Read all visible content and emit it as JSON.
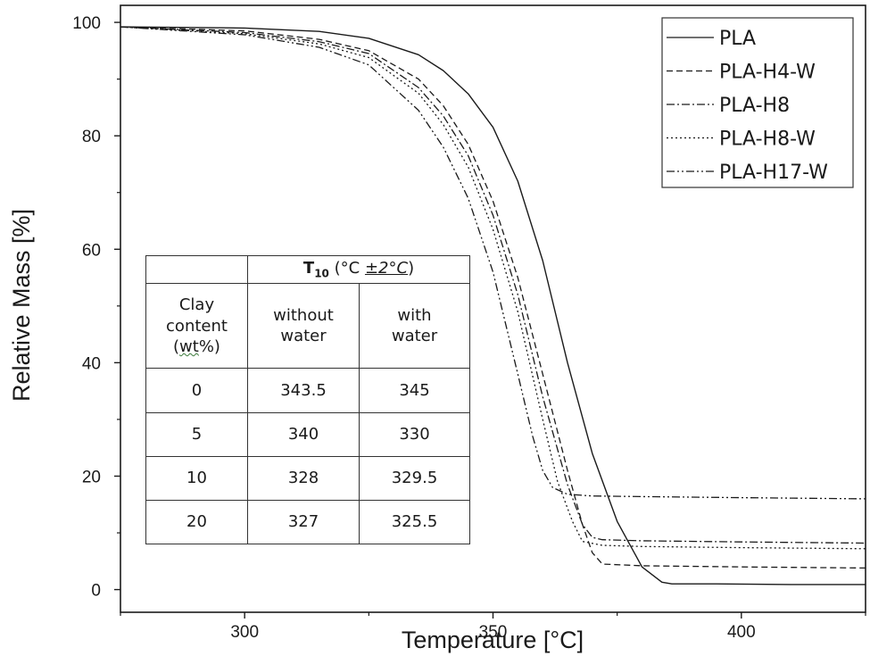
{
  "chart_data": {
    "type": "line",
    "xlabel": "Temperature [°C]",
    "ylabel": "Relative Mass [%]",
    "xlim": [
      275,
      425
    ],
    "ylim": [
      -4,
      103
    ],
    "xticks": [
      300,
      350,
      400
    ],
    "yticks": [
      0,
      20,
      40,
      60,
      80,
      100
    ],
    "xtick_labels": [
      "300",
      "350",
      "400"
    ],
    "ytick_labels": [
      "0",
      "20",
      "40",
      "60",
      "80",
      "100"
    ],
    "grid": false,
    "legend_position": "top-right",
    "series": [
      {
        "name": "PLA",
        "dash": "solid",
        "x": [
          275,
          300,
          315,
          325,
          335,
          340,
          345,
          350,
          355,
          360,
          365,
          370,
          375,
          380,
          384,
          386,
          395,
          410,
          425
        ],
        "y": [
          99.2,
          99.0,
          98.4,
          97.2,
          94.3,
          91.5,
          87.4,
          81.5,
          72.0,
          58.0,
          40.0,
          24.0,
          12.0,
          4.0,
          1.3,
          1.0,
          1.0,
          0.9,
          0.9
        ]
      },
      {
        "name": "PLA-H4-W",
        "dash": "dashed",
        "x": [
          275,
          300,
          315,
          325,
          335,
          340,
          345,
          350,
          355,
          360,
          365,
          368,
          370,
          372,
          380,
          400,
          425
        ],
        "y": [
          99.2,
          98.5,
          97.0,
          95.0,
          90.0,
          85.3,
          78.5,
          68.5,
          55.0,
          38.0,
          21.0,
          11.5,
          6.5,
          4.5,
          4.2,
          4.0,
          3.8
        ]
      },
      {
        "name": "PLA-H8",
        "dash": "dashdot",
        "x": [
          275,
          300,
          315,
          325,
          335,
          340,
          345,
          350,
          355,
          360,
          365,
          368,
          370,
          372,
          380,
          400,
          425
        ],
        "y": [
          99.2,
          98.2,
          96.6,
          94.5,
          88.5,
          83.5,
          76.5,
          66.0,
          52.0,
          34.0,
          18.5,
          11.5,
          9.2,
          8.8,
          8.6,
          8.4,
          8.2
        ]
      },
      {
        "name": "PLA-H8-W",
        "dash": "dotted",
        "x": [
          275,
          300,
          315,
          325,
          335,
          340,
          345,
          350,
          355,
          360,
          363,
          366,
          368,
          372,
          380,
          400,
          425
        ],
        "y": [
          99.2,
          98.0,
          96.2,
          93.8,
          87.5,
          82.0,
          74.5,
          63.5,
          49.0,
          30.0,
          19.0,
          12.0,
          8.5,
          7.8,
          7.6,
          7.4,
          7.2
        ]
      },
      {
        "name": "PLA-H17-W",
        "dash": "dashdotdot",
        "x": [
          275,
          300,
          315,
          325,
          335,
          340,
          345,
          350,
          355,
          358,
          360,
          362,
          365,
          370,
          380,
          400,
          425
        ],
        "y": [
          99.2,
          97.8,
          95.6,
          92.5,
          84.5,
          78.0,
          69.0,
          56.0,
          38.0,
          27.0,
          21.0,
          18.0,
          16.8,
          16.5,
          16.4,
          16.2,
          16.0
        ]
      }
    ]
  },
  "inset_table": {
    "header": {
      "group_title": "T",
      "group_subscript": "10",
      "group_unit_prefix": " (°C ",
      "group_unit_pm": "±2°C",
      "group_unit_suffix": ")",
      "col0_line1": "Clay",
      "col0_line2": "content",
      "col0_line3_prefix": "(",
      "col0_line3_wt": "wt",
      "col0_line3_suffix": "%)",
      "col1_line1": "without",
      "col1_line2": "water",
      "col2_line1": "with",
      "col2_line2": "water"
    },
    "rows": [
      {
        "clay": "0",
        "without": "343.5",
        "with": "345"
      },
      {
        "clay": "5",
        "without": "340",
        "with": "330"
      },
      {
        "clay": "10",
        "without": "328",
        "with": "329.5"
      },
      {
        "clay": "20",
        "without": "327",
        "with": "325.5"
      }
    ]
  },
  "colors": {
    "line": "#1a1a1a",
    "axis": "#1a1a1a",
    "background": "#ffffff"
  }
}
